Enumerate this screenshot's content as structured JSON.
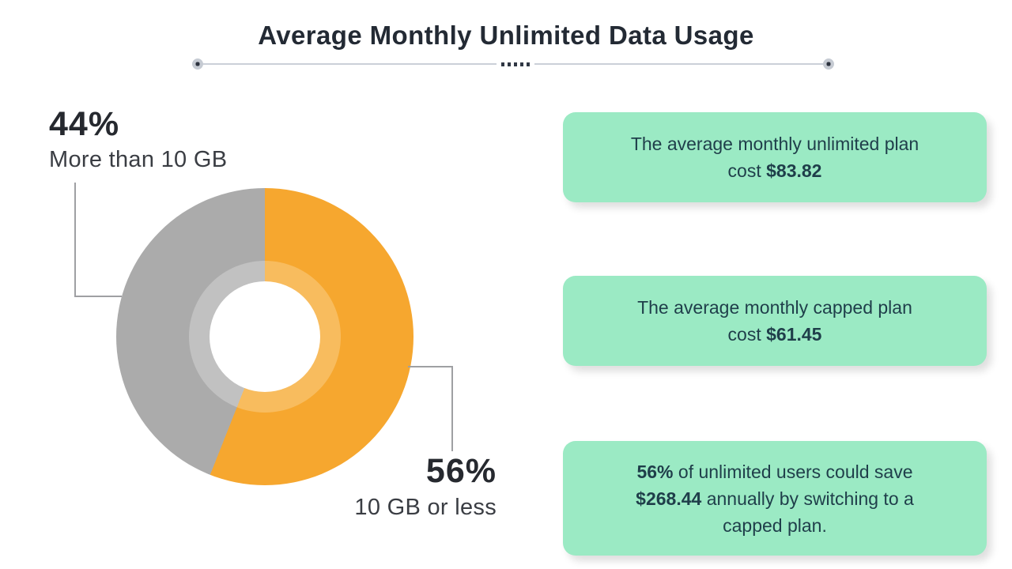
{
  "title": "Average Monthly Unlimited Data Usage",
  "chart_data": {
    "type": "pie",
    "donut": true,
    "title": "Average Monthly Unlimited Data Usage",
    "hole_ratio": 0.37,
    "legend_position": "callout-labels",
    "slices": [
      {
        "label": "10 GB or less",
        "value": 56,
        "pct_label": "56%",
        "color": "#F6A72F",
        "color_light": "#F8BC5E"
      },
      {
        "label": "More than 10 GB",
        "value": 44,
        "pct_label": "44%",
        "color": "#ABABAB",
        "color_light": "#C1C1C1"
      }
    ]
  },
  "cards": [
    {
      "lines": [
        {
          "segments": [
            {
              "text": "The average monthly unlimited plan",
              "bold": false
            }
          ]
        },
        {
          "segments": [
            {
              "text": "cost ",
              "bold": false
            },
            {
              "text": "$83.82",
              "bold": true
            }
          ]
        }
      ]
    },
    {
      "lines": [
        {
          "segments": [
            {
              "text": "The average monthly capped plan",
              "bold": false
            }
          ]
        },
        {
          "segments": [
            {
              "text": "cost ",
              "bold": false
            },
            {
              "text": "$61.45",
              "bold": true
            }
          ]
        }
      ]
    },
    {
      "lines": [
        {
          "segments": [
            {
              "text": "56%",
              "bold": true
            },
            {
              "text": " of unlimited users could save",
              "bold": false
            }
          ]
        },
        {
          "segments": [
            {
              "text": "$268.44",
              "bold": true
            },
            {
              "text": " annually by switching to a",
              "bold": false
            }
          ]
        },
        {
          "segments": [
            {
              "text": "capped plan.",
              "bold": false
            }
          ]
        }
      ]
    }
  ],
  "colors": {
    "title_text": "#232A34",
    "label_text": "#26292F",
    "card_bg": "#9BEAC4",
    "card_text": "#1F3E4A",
    "divider": "#CBD0D8",
    "callout_line": "#9FA0A3"
  }
}
